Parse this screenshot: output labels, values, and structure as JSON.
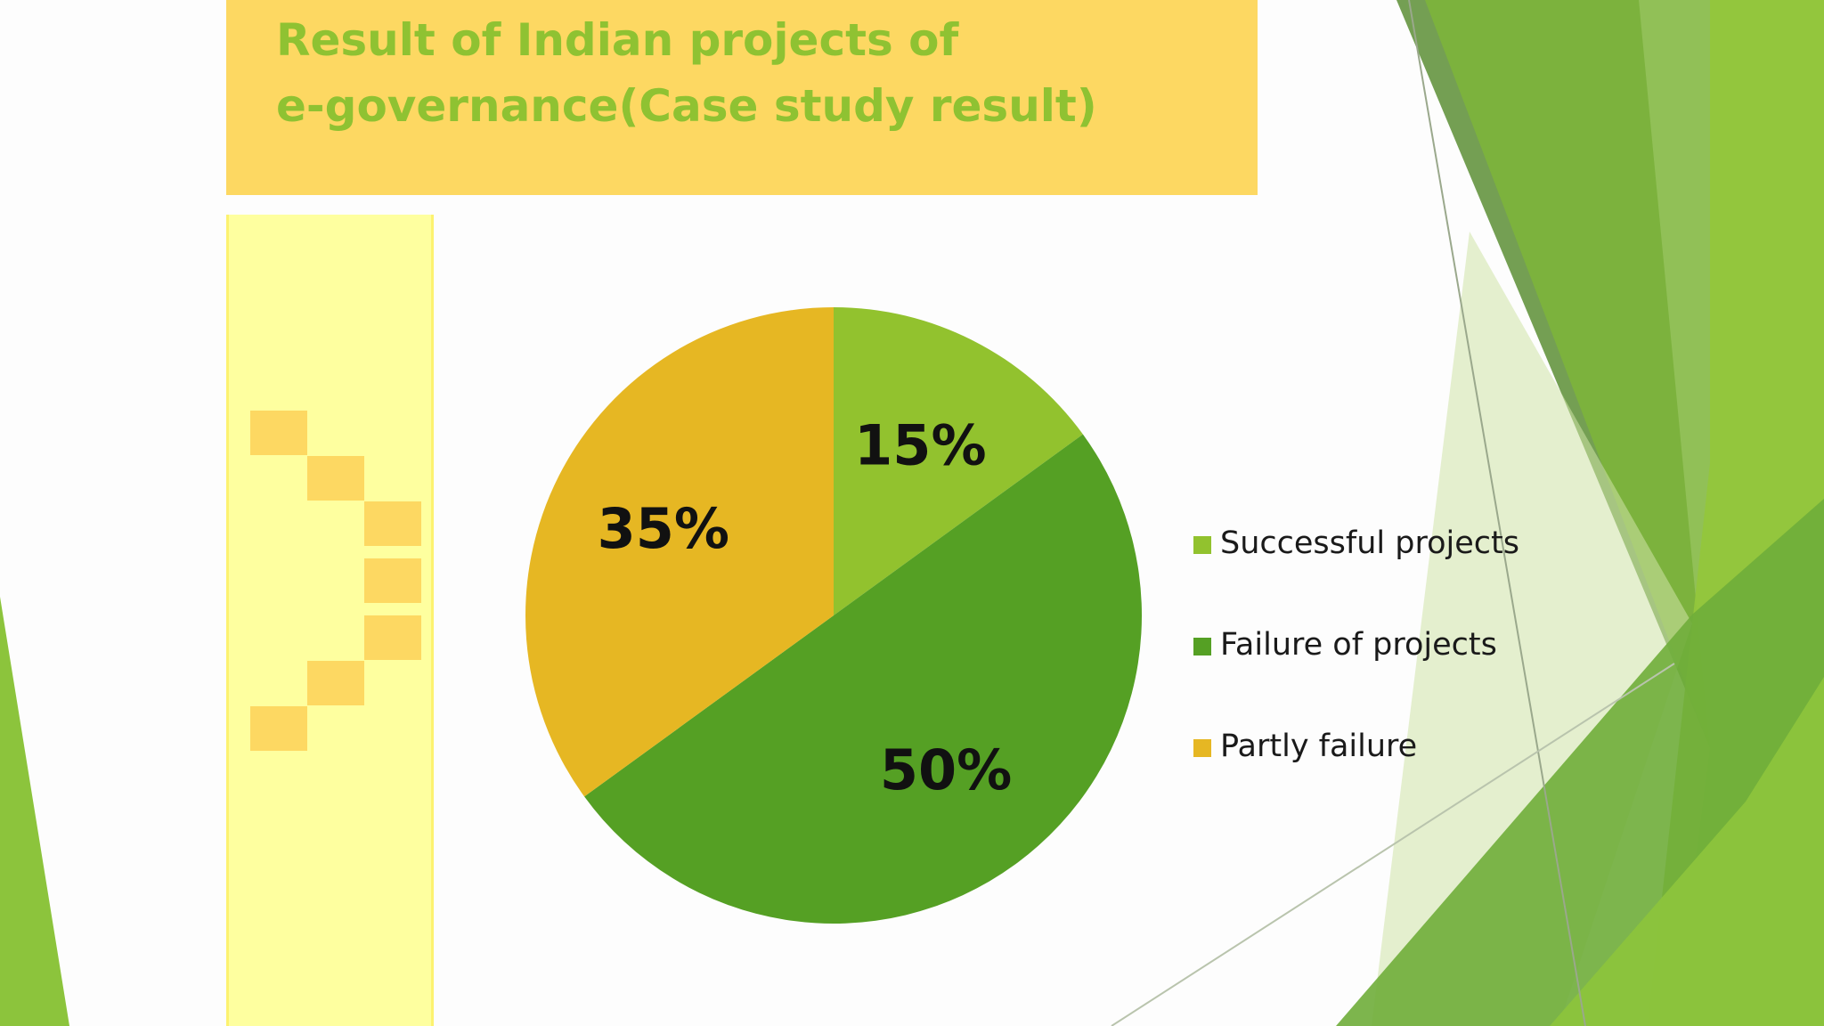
{
  "slide": {
    "title_line1": "Result of Indian projects of",
    "title_line2": "e-governance(Case study result)"
  },
  "colors": {
    "title_bar": "#fdd862",
    "title_text": "#8fc232",
    "strip": "#feff9f",
    "accent_green_light": "#92c22e",
    "accent_green_dark": "#55a024",
    "accent_gold": "#e6b723"
  },
  "chart_data": {
    "type": "pie",
    "title": "",
    "slices": [
      {
        "label": "Successful projects",
        "value": 15,
        "display": "15%",
        "color": "#92c22e"
      },
      {
        "label": "Failure of projects",
        "value": 50,
        "display": "50%",
        "color": "#55a024"
      },
      {
        "label": "Partly failure",
        "value": 35,
        "display": "35%",
        "color": "#e6b723"
      }
    ],
    "start_angle": "12 o'clock",
    "direction": "clockwise",
    "legend_position": "right"
  }
}
